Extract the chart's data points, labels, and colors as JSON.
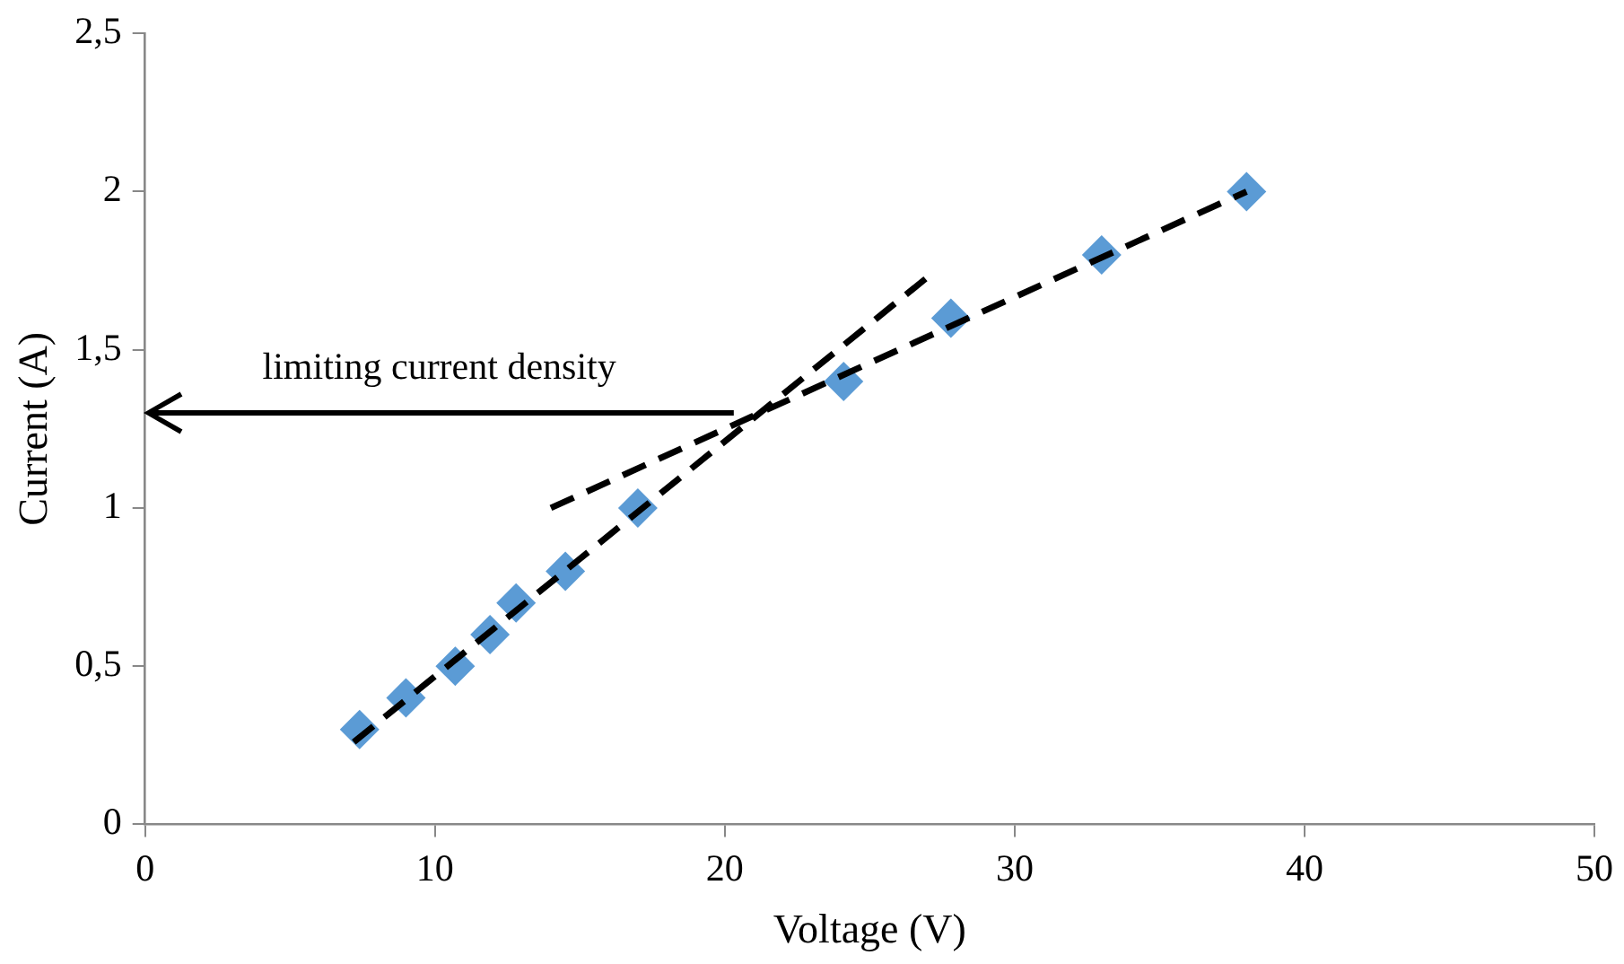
{
  "chart_data": {
    "type": "scatter",
    "xlabel": "Voltage (V)",
    "ylabel": "Current (A)",
    "xlim": [
      0,
      50
    ],
    "xticks": [
      0,
      10,
      20,
      30,
      40,
      50
    ],
    "ylim": [
      0,
      2.5
    ],
    "yticks": [
      0,
      {
        "value": 0.5,
        "label": "0,5"
      },
      1,
      {
        "value": 1.5,
        "label": "1,5"
      },
      2,
      {
        "value": 2.5,
        "label": "2,5"
      }
    ],
    "grid": false,
    "legend": false,
    "marker": "diamond",
    "series": [
      {
        "color": "#5b9bd5",
        "x": [
          7.4,
          9.0,
          10.7,
          11.9,
          12.8,
          14.5,
          17.0,
          24.1,
          27.8,
          33.0,
          38.0
        ],
        "values": [
          0.3,
          0.4,
          0.5,
          0.6,
          0.7,
          0.8,
          1.0,
          1.4,
          1.6,
          1.8,
          2.0
        ]
      },
      {
        "type": "line",
        "color": "#000000",
        "line_style": "dashed",
        "marker": "none",
        "x": [
          7.2,
          27.0
        ],
        "values": [
          0.26,
          1.73
        ]
      },
      {
        "type": "line",
        "color": "#000000",
        "line_style": "dashed",
        "marker": "none",
        "x": [
          14.0,
          38.0
        ],
        "values": [
          1.0,
          2.0
        ]
      }
    ],
    "annotations": [
      "limiting current density"
    ]
  }
}
